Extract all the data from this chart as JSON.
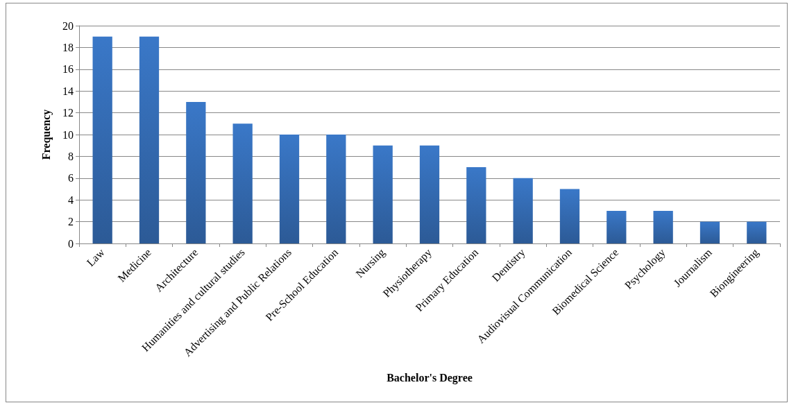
{
  "chart_data": {
    "type": "bar",
    "xlabel": "Bachelor's Degree",
    "ylabel": "Frequency",
    "categories": [
      "Law",
      "Medicine",
      "Architecture",
      "Humanities and cultural studies",
      "Advertising and Public Relations",
      "Pre-School Education",
      "Nursing",
      "Physiotherapy",
      "Primary Education",
      "Dentistry",
      "Audiovisual Communication",
      "Biomedical Science",
      "Psychology",
      "Journalism",
      "Biongineering"
    ],
    "values": [
      19,
      19,
      13,
      11,
      10,
      10,
      9,
      9,
      7,
      6,
      5,
      3,
      3,
      2,
      2
    ],
    "color": "#3a78c8",
    "ylim": [
      0,
      20
    ],
    "yticks": [
      0,
      2,
      4,
      6,
      8,
      10,
      12,
      14,
      16,
      18,
      20
    ],
    "grid": "y"
  }
}
